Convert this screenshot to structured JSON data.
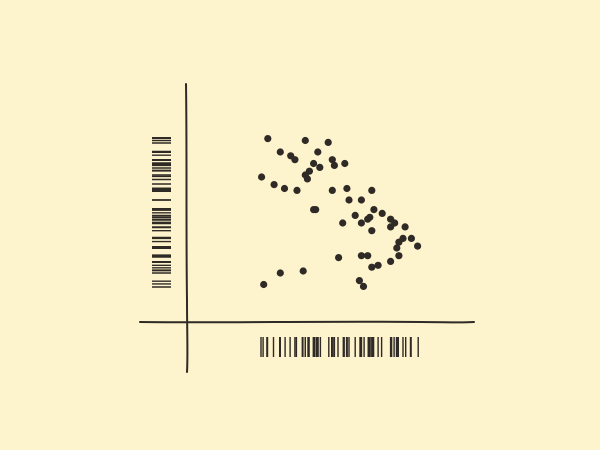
{
  "colors": {
    "background": "#fdf3cc",
    "ink": "#2f2a25"
  },
  "chart_data": {
    "type": "scatter",
    "title": "",
    "xlabel": "",
    "ylabel": "",
    "xlim": [
      0,
      100
    ],
    "ylim": [
      0,
      100
    ],
    "grid": false,
    "legend": "none",
    "marginal_rugs": true,
    "x": [
      23,
      41,
      52,
      29,
      47,
      54,
      34,
      36,
      45,
      60,
      55,
      48,
      43,
      41,
      42,
      26,
      61,
      31,
      54,
      62,
      73,
      37,
      68,
      46,
      74,
      65,
      71,
      78,
      72,
      59,
      68,
      73,
      82,
      84,
      82,
      89,
      92,
      88,
      95,
      86,
      85,
      71,
      57,
      68,
      82,
      86,
      76,
      73,
      40,
      29,
      67,
      20,
      45,
      69,
      21
    ],
    "y": [
      82,
      81,
      80,
      75,
      75,
      71,
      73,
      71,
      69,
      69,
      68,
      67,
      65,
      63,
      61,
      58,
      56,
      56,
      55,
      50,
      55,
      55,
      50,
      45,
      45,
      42,
      40,
      43,
      41,
      38,
      38,
      34,
      40,
      38,
      36,
      36,
      30,
      30,
      26,
      28,
      25,
      21,
      20,
      21,
      18,
      21,
      16,
      15,
      13,
      12,
      8,
      62,
      45,
      5,
      6
    ]
  }
}
